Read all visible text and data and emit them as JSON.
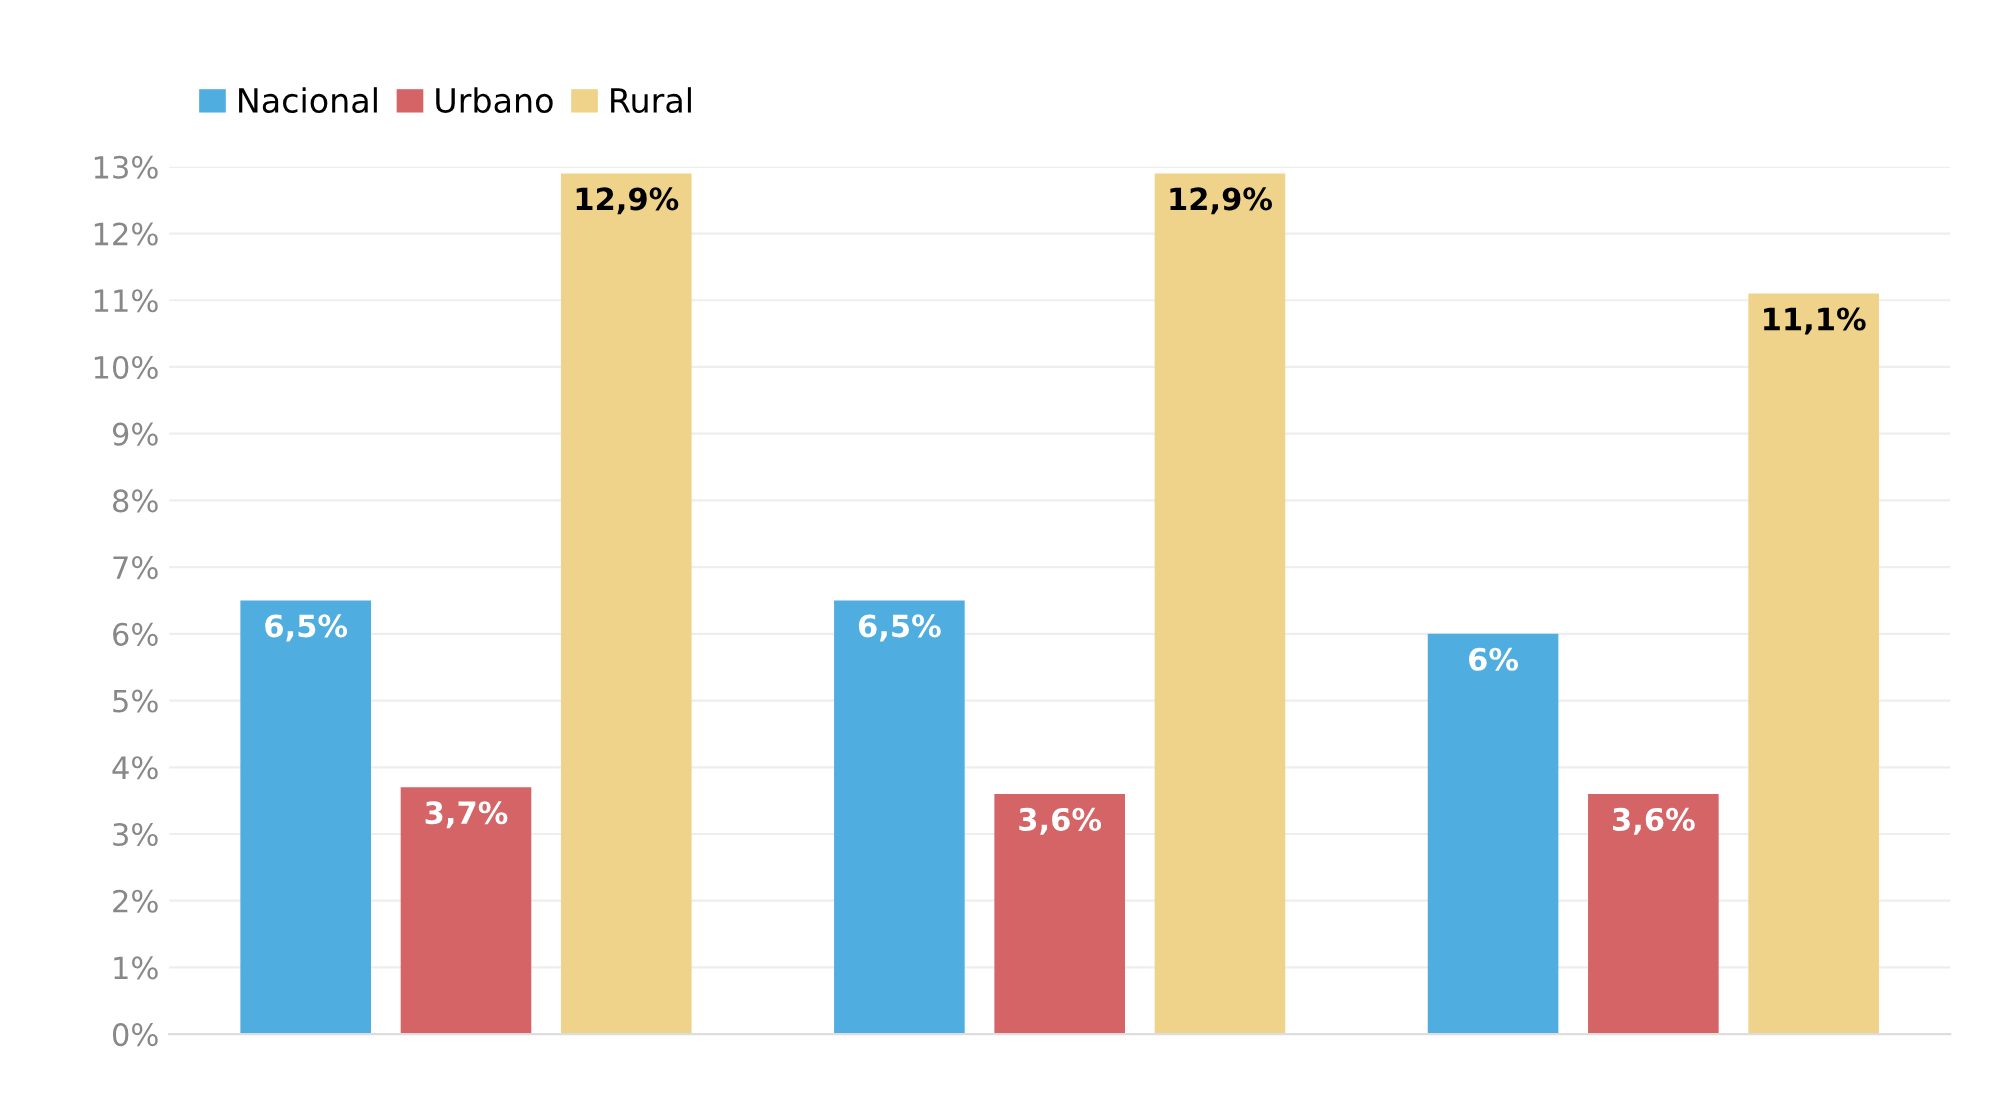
{
  "chart_data": {
    "type": "bar",
    "categories": [
      null,
      null,
      null
    ],
    "series": [
      {
        "name": "Nacional",
        "color": "#4fade0",
        "values": [
          6.5,
          6.5,
          6.0
        ],
        "value_labels": [
          "6,5%",
          "6,5%",
          "6%"
        ]
      },
      {
        "name": "Urbano",
        "color": "#d56466",
        "values": [
          3.7,
          3.6,
          3.6
        ],
        "value_labels": [
          "3,7%",
          "3,6%",
          "3,6%"
        ]
      },
      {
        "name": "Rural",
        "color": "#efd38a",
        "values": [
          12.9,
          12.9,
          11.1
        ],
        "value_labels": [
          "12,9%",
          "12,9%",
          "11,1%"
        ]
      }
    ],
    "ylim": [
      0,
      13
    ],
    "yticks": [
      {
        "value": 0,
        "label": "0%"
      },
      {
        "value": 1,
        "label": "1%"
      },
      {
        "value": 2,
        "label": "2%"
      },
      {
        "value": 3,
        "label": "3%"
      },
      {
        "value": 4,
        "label": "4%"
      },
      {
        "value": 5,
        "label": "5%"
      },
      {
        "value": 6,
        "label": "6%"
      },
      {
        "value": 7,
        "label": "7%"
      },
      {
        "value": 8,
        "label": "8%"
      },
      {
        "value": 9,
        "label": "9%"
      },
      {
        "value": 10,
        "label": "10%"
      },
      {
        "value": 11,
        "label": "11%"
      },
      {
        "value": 12,
        "label": "12%"
      },
      {
        "value": 13,
        "label": "13%"
      }
    ],
    "grid": "y",
    "legend": "top left"
  }
}
